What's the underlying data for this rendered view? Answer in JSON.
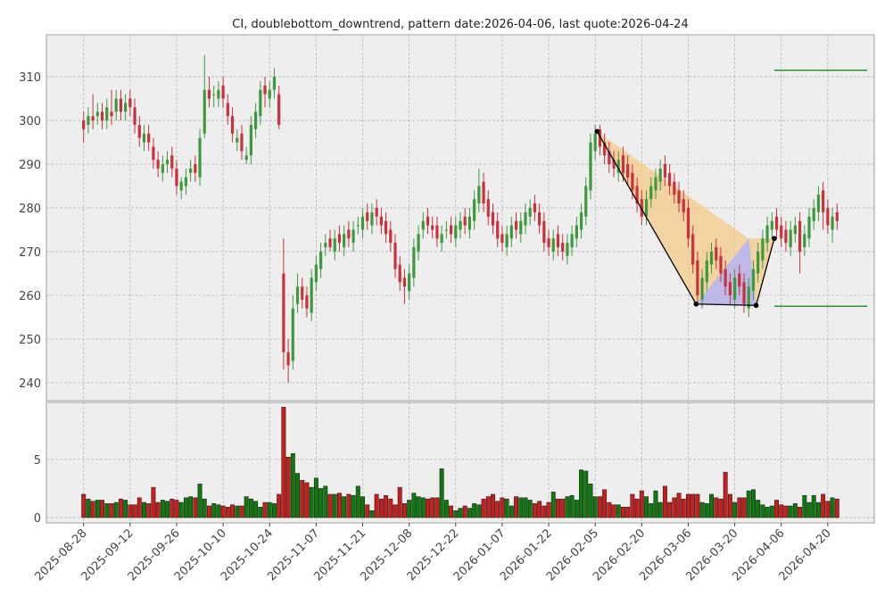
{
  "chart_data": {
    "type": "candlestick",
    "title": "CI, doublebottom_downtrend, pattern date:2026-04-06, last quote:2026-04-24",
    "up_color": "#3c9a3c",
    "down_color": "#c8323c",
    "volume_up_color": "#0e7a0e",
    "volume_down_color": "#c81e1e",
    "grid": true,
    "xlim": [
      -8,
      170
    ],
    "xticks": [
      {
        "value": 0,
        "label": "2025-08-28"
      },
      {
        "value": 10,
        "label": "2025-09-12"
      },
      {
        "value": 20,
        "label": "2025-09-26"
      },
      {
        "value": 30,
        "label": "2025-10-10"
      },
      {
        "value": 40,
        "label": "2025-10-24"
      },
      {
        "value": 50,
        "label": "2025-11-07"
      },
      {
        "value": 60,
        "label": "2025-11-21"
      },
      {
        "value": 70,
        "label": "2025-12-08"
      },
      {
        "value": 80,
        "label": "2025-12-22"
      },
      {
        "value": 90,
        "label": "2026-01-07"
      },
      {
        "value": 100,
        "label": "2026-01-22"
      },
      {
        "value": 110,
        "label": "2026-02-05"
      },
      {
        "value": 120,
        "label": "2026-02-20"
      },
      {
        "value": 130,
        "label": "2026-03-06"
      },
      {
        "value": 140,
        "label": "2026-03-20"
      },
      {
        "value": 150,
        "label": "2026-04-06"
      },
      {
        "value": 160,
        "label": "2026-04-20"
      }
    ],
    "ylim": [
      235.9,
      319.6
    ],
    "yticks": [
      240,
      250,
      260,
      270,
      280,
      290,
      300,
      310
    ],
    "open": [
      300,
      299,
      301,
      301,
      302,
      300,
      302,
      302,
      305,
      302,
      305,
      303,
      299,
      295,
      297,
      294,
      291,
      288,
      290,
      292,
      289,
      284,
      285,
      288,
      290,
      287,
      297,
      307,
      306,
      305,
      308,
      304,
      301,
      295,
      297,
      291,
      292,
      298,
      301,
      308,
      305,
      307,
      306,
      265,
      247,
      245,
      258,
      262,
      260,
      256,
      263,
      266,
      271,
      273,
      270,
      274,
      271,
      275,
      272,
      276,
      275,
      279,
      276,
      280,
      278,
      277,
      275,
      272,
      267,
      264,
      261,
      264,
      270,
      275,
      278,
      276,
      276,
      272,
      275,
      276,
      273,
      275,
      278,
      275,
      277,
      281,
      286,
      282,
      279,
      277,
      274,
      271,
      273,
      277,
      274,
      276,
      278,
      281,
      279,
      277,
      273,
      270,
      274,
      272,
      269,
      271,
      273,
      275,
      278,
      284,
      293,
      298,
      295,
      293,
      291,
      288,
      292,
      290,
      288,
      285,
      282,
      278,
      282,
      284,
      286,
      290,
      288,
      286,
      284,
      282,
      280,
      274,
      268,
      259,
      263,
      267,
      271,
      269,
      266,
      263,
      259,
      265,
      263,
      257,
      261,
      265,
      268,
      272,
      275,
      278,
      276,
      275,
      271,
      274,
      277,
      271,
      273,
      277,
      279,
      284,
      280,
      275,
      279
    ],
    "high": [
      302,
      303,
      306,
      304,
      304,
      305,
      307,
      307,
      307,
      306,
      307,
      305,
      301,
      299,
      299,
      296,
      293,
      292,
      293,
      294,
      291,
      287,
      289,
      291,
      292,
      298,
      315,
      310,
      308,
      309,
      310,
      306,
      303,
      298,
      299,
      294,
      301,
      304,
      309,
      310,
      309,
      312,
      308,
      273,
      250,
      260,
      265,
      264,
      262,
      266,
      269,
      272,
      274,
      275,
      275,
      276,
      276,
      277,
      277,
      278,
      280,
      281,
      281,
      282,
      280,
      279,
      277,
      274,
      269,
      266,
      267,
      273,
      276,
      279,
      280,
      278,
      278,
      276,
      277,
      278,
      278,
      279,
      280,
      280,
      284,
      289,
      288,
      284,
      281,
      279,
      276,
      276,
      278,
      279,
      279,
      281,
      282,
      283,
      281,
      279,
      275,
      275,
      276,
      274,
      274,
      276,
      278,
      281,
      287,
      297,
      299,
      299,
      297,
      295,
      293,
      293,
      294,
      292,
      290,
      287,
      284,
      284,
      287,
      289,
      291,
      292,
      290,
      288,
      286,
      284,
      282,
      276,
      270,
      266,
      270,
      272,
      273,
      271,
      268,
      265,
      266,
      267,
      265,
      264,
      268,
      272,
      275,
      278,
      279,
      280,
      278,
      277,
      277,
      278,
      279,
      276,
      280,
      282,
      285,
      286,
      282,
      280,
      281
    ],
    "low": [
      295,
      297,
      298,
      299,
      298,
      298,
      299,
      300,
      300,
      300,
      301,
      297,
      294,
      293,
      293,
      289,
      287,
      286,
      288,
      287,
      283,
      282,
      283,
      286,
      286,
      285,
      296,
      303,
      303,
      303,
      303,
      299,
      295,
      293,
      291,
      290,
      290,
      296,
      299,
      303,
      303,
      305,
      298,
      243,
      240,
      243,
      256,
      257,
      255,
      254,
      261,
      264,
      269,
      270,
      268,
      270,
      269,
      271,
      270,
      274,
      273,
      275,
      274,
      276,
      274,
      272,
      270,
      264,
      261,
      258,
      259,
      262,
      268,
      273,
      274,
      273,
      271,
      270,
      273,
      272,
      271,
      273,
      274,
      273,
      275,
      279,
      279,
      276,
      274,
      271,
      270,
      269,
      271,
      273,
      272,
      274,
      276,
      277,
      274,
      270,
      269,
      268,
      269,
      268,
      267,
      269,
      271,
      273,
      276,
      282,
      291,
      292,
      290,
      288,
      287,
      286,
      286,
      285,
      282,
      279,
      276,
      276,
      280,
      282,
      284,
      285,
      283,
      281,
      279,
      277,
      271,
      265,
      258,
      257,
      261,
      265,
      266,
      263,
      260,
      258,
      257,
      260,
      256,
      255,
      259,
      263,
      266,
      270,
      273,
      273,
      271,
      270,
      269,
      272,
      265,
      269,
      271,
      275,
      277,
      275,
      274,
      272,
      275
    ],
    "close": [
      298,
      301,
      300,
      302,
      300,
      303,
      301,
      305,
      302,
      304,
      303,
      299,
      296,
      297,
      295,
      291,
      289,
      290,
      291,
      289,
      285,
      286,
      287,
      289,
      288,
      296,
      307,
      305,
      306,
      307,
      305,
      301,
      297,
      296,
      293,
      292,
      299,
      302,
      307,
      306,
      307,
      310,
      299,
      247,
      244,
      257,
      262,
      259,
      257,
      264,
      267,
      270,
      272,
      271,
      273,
      272,
      274,
      273,
      275,
      276,
      278,
      277,
      279,
      278,
      276,
      274,
      272,
      266,
      263,
      262,
      265,
      271,
      274,
      277,
      276,
      275,
      273,
      274,
      275,
      274,
      276,
      277,
      276,
      278,
      282,
      285,
      281,
      278,
      276,
      273,
      272,
      274,
      276,
      275,
      277,
      279,
      280,
      279,
      276,
      272,
      271,
      273,
      271,
      270,
      272,
      274,
      276,
      279,
      285,
      295,
      297,
      294,
      292,
      290,
      289,
      291,
      288,
      287,
      284,
      281,
      278,
      282,
      285,
      287,
      289,
      287,
      285,
      283,
      281,
      279,
      273,
      267,
      260,
      264,
      268,
      270,
      268,
      265,
      262,
      260,
      264,
      262,
      258,
      262,
      266,
      270,
      273,
      276,
      277,
      275,
      273,
      272,
      275,
      276,
      270,
      274,
      278,
      280,
      283,
      279,
      276,
      278,
      277
    ],
    "volume": [
      2.0,
      1.6,
      1.4,
      1.5,
      1.5,
      1.2,
      1.2,
      1.3,
      1.6,
      1.5,
      1.1,
      1.1,
      1.7,
      1.3,
      1.2,
      2.6,
      1.3,
      1.5,
      1.4,
      1.6,
      1.5,
      1.3,
      1.7,
      1.8,
      1.7,
      2.9,
      1.6,
      1.0,
      1.2,
      1.1,
      1.0,
      0.9,
      1.1,
      1.0,
      1.0,
      1.8,
      1.6,
      1.4,
      0.9,
      1.3,
      1.3,
      1.2,
      2.0,
      9.5,
      5.2,
      5.5,
      3.8,
      3.2,
      3.0,
      2.6,
      3.4,
      2.5,
      2.7,
      2.0,
      2.0,
      2.1,
      1.8,
      2.0,
      1.9,
      2.7,
      1.8,
      1.1,
      0.6,
      2.0,
      1.6,
      1.9,
      1.6,
      1.1,
      2.6,
      1.2,
      1.5,
      2.1,
      1.8,
      1.7,
      1.6,
      1.7,
      1.7,
      4.2,
      1.5,
      1.0,
      0.6,
      0.8,
      1.0,
      0.8,
      1.2,
      1.1,
      1.6,
      1.8,
      2.0,
      1.4,
      1.7,
      1.6,
      1.0,
      1.8,
      1.7,
      1.7,
      1.5,
      1.2,
      1.4,
      1.0,
      1.3,
      2.2,
      1.6,
      1.6,
      1.8,
      1.9,
      1.5,
      4.1,
      4.0,
      2.9,
      1.8,
      1.8,
      2.4,
      1.3,
      1.1,
      1.1,
      0.9,
      0.9,
      2.0,
      1.6,
      2.3,
      1.8,
      1.2,
      2.3,
      1.3,
      2.7,
      1.3,
      1.7,
      2.1,
      1.6,
      2.0,
      2.0,
      2.0,
      1.3,
      1.2,
      2.0,
      1.7,
      1.6,
      3.9,
      2.0,
      1.3,
      1.7,
      1.7,
      2.3,
      2.4,
      1.5,
      1.1,
      0.9,
      1.0,
      1.5,
      1.1,
      1.0,
      1.0,
      1.2,
      0.9,
      1.9,
      1.3,
      1.9,
      1.3,
      2.0,
      1.4,
      1.7,
      1.6
    ],
    "volume_ylim": [
      -0.46,
      9.9
    ],
    "volume_yticks": [
      0,
      5
    ],
    "pattern": {
      "points": [
        [
          110.4,
          297.5
        ],
        [
          131.7,
          258
        ],
        [
          144.6,
          257.7
        ],
        [
          148.5,
          273
        ]
      ],
      "zone_top": [
        143,
        273
      ],
      "line_color": "#000000",
      "upper_zone_color": "#f5c98a",
      "lower_zone_color": "#b4b4f5"
    },
    "levels": [
      {
        "y": 311.5,
        "x": [
          148.5,
          168.5
        ]
      },
      {
        "y": 257.5,
        "x": [
          148.5,
          168.5
        ]
      }
    ],
    "level_color": "#1a8a1a"
  }
}
